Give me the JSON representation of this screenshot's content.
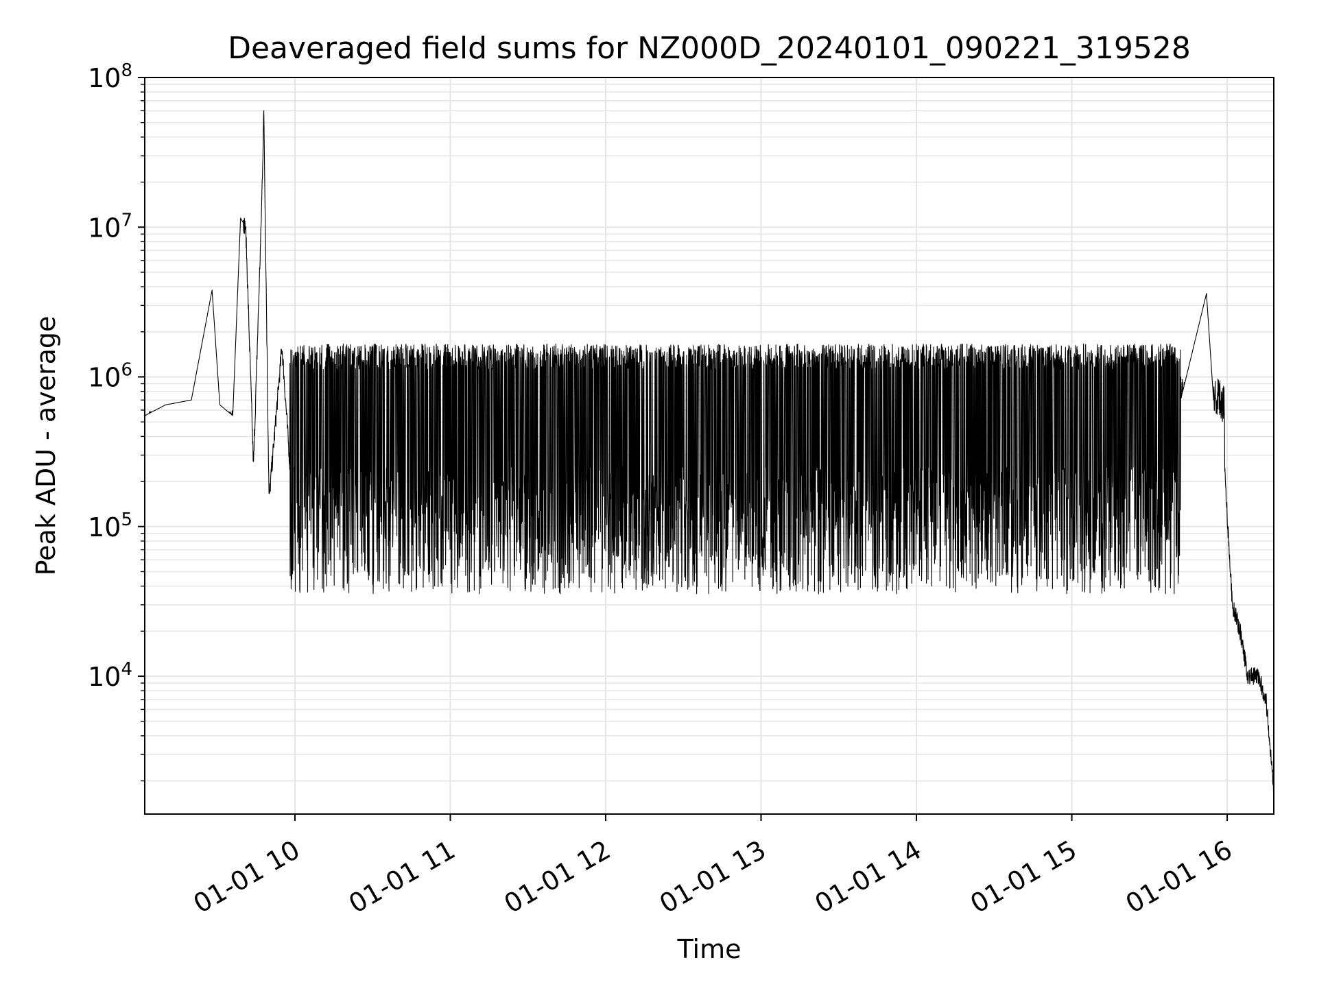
{
  "chart_data": {
    "type": "line",
    "title": "Deaveraged field sums for NZ000D_20240101_090221_319528",
    "xlabel": "Time",
    "ylabel": "Peak ADU - average",
    "y_scale": "log",
    "ylim": [
      1200,
      100000000
    ],
    "xlim": [
      "01-01 09:02",
      "01-01 16:18"
    ],
    "grid": true,
    "legend": "none",
    "line_color": "#000000",
    "grid_color": "#e6e6e6",
    "x_ticks": [
      "01-01 10",
      "01-01 11",
      "01-01 12",
      "01-01 13",
      "01-01 14",
      "01-01 15",
      "01-01 16"
    ],
    "y_ticks": [
      {
        "base": "10",
        "exp": "4",
        "value": 10000
      },
      {
        "base": "10",
        "exp": "5",
        "value": 100000
      },
      {
        "base": "10",
        "exp": "6",
        "value": 1000000
      },
      {
        "base": "10",
        "exp": "7",
        "value": 10000000
      },
      {
        "base": "10",
        "exp": "8",
        "value": 100000000
      }
    ],
    "series": [
      {
        "points": [
          [
            "01-01 09:02",
            550000
          ],
          [
            "01-01 09:10",
            650000
          ],
          [
            "01-01 09:20",
            700000
          ],
          [
            "01-01 09:28",
            3800000
          ],
          [
            "01-01 09:31",
            650000
          ],
          [
            "01-01 09:36",
            550000
          ],
          [
            "01-01 09:39",
            11500000
          ],
          [
            "01-01 09:41",
            10000000
          ],
          [
            "01-01 09:44",
            250000
          ],
          [
            "01-01 09:47",
            11000000
          ],
          [
            "01-01 09:48",
            60000000
          ],
          [
            "01-01 09:50",
            150000
          ],
          [
            "01-01 09:55",
            1600000
          ],
          [
            "01-01 10:00",
            80000
          ],
          [
            "01-01 10:15",
            1400000
          ],
          [
            "01-01 10:30",
            30000
          ],
          [
            "01-01 10:45",
            1300000
          ],
          [
            "01-01 11:00",
            35000
          ],
          [
            "01-01 11:15",
            1300000
          ],
          [
            "01-01 11:18",
            29000
          ],
          [
            "01-01 11:30",
            1300000
          ],
          [
            "01-01 12:00",
            1400000
          ],
          [
            "01-01 12:15",
            45000
          ],
          [
            "01-01 12:30",
            1500000
          ],
          [
            "01-01 13:00",
            1800000
          ],
          [
            "01-01 13:08",
            35000
          ],
          [
            "01-01 13:30",
            1500000
          ],
          [
            "01-01 14:00",
            1500000
          ],
          [
            "01-01 14:20",
            45000
          ],
          [
            "01-01 14:40",
            42000
          ],
          [
            "01-01 15:00",
            1300000
          ],
          [
            "01-01 15:30",
            1500000
          ],
          [
            "01-01 15:40",
            500000
          ],
          [
            "01-01 15:52",
            3600000
          ],
          [
            "01-01 15:55",
            600000
          ],
          [
            "01-01 15:58",
            500000
          ],
          [
            "01-01 16:00",
            120000
          ],
          [
            "01-01 16:02",
            30000
          ],
          [
            "01-01 16:05",
            20000
          ],
          [
            "01-01 16:08",
            10000
          ],
          [
            "01-01 16:12",
            10000
          ],
          [
            "01-01 16:15",
            7000
          ],
          [
            "01-01 16:18",
            1800
          ]
        ]
      }
    ]
  }
}
